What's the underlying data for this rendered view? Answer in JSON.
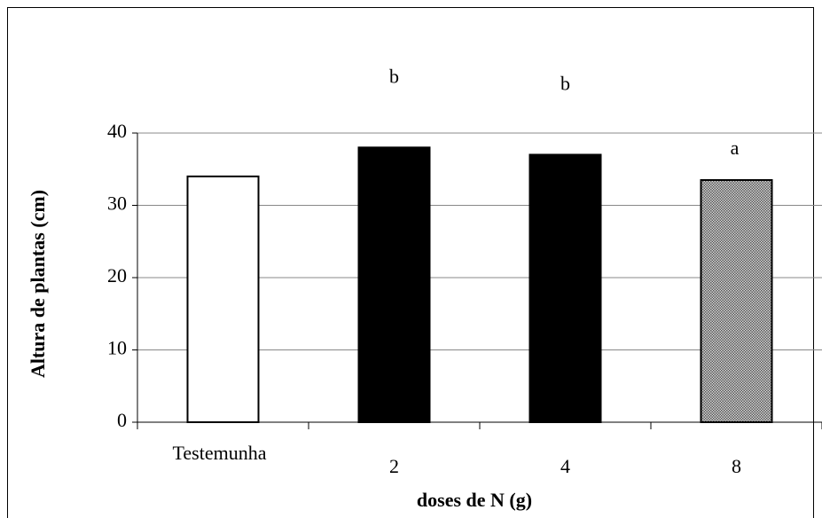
{
  "chart_data": {
    "type": "bar",
    "categories": [
      "Testemunha",
      "2",
      "4",
      "8"
    ],
    "values": [
      34,
      38,
      37,
      33.5
    ],
    "colors": [
      "#ffffff",
      "#000000",
      "#000000",
      "#a8a8a8"
    ],
    "annotations": [
      null,
      "b",
      "b",
      "a"
    ],
    "xlabel": "doses de N (g)",
    "ylabel": "Altura de plantas (cm)",
    "ylim": [
      0,
      40
    ],
    "yticks": [
      0,
      10,
      20,
      30,
      40
    ],
    "grid": true
  }
}
